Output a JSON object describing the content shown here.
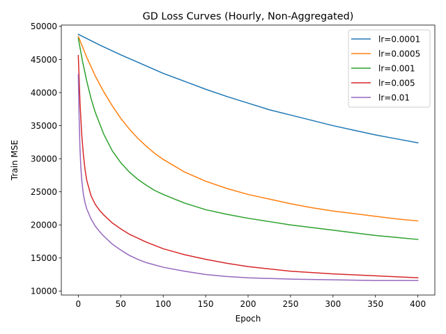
{
  "chart_data": {
    "type": "line",
    "title": "GD Loss Curves (Hourly, Non-Aggregated)",
    "xlabel": "Epoch",
    "ylabel": "Train MSE",
    "xlim": [
      -20,
      420
    ],
    "ylim": [
      9400,
      50200
    ],
    "xticks": [
      0,
      50,
      100,
      150,
      200,
      250,
      300,
      350,
      400
    ],
    "yticks": [
      10000,
      15000,
      20000,
      25000,
      30000,
      35000,
      40000,
      45000,
      50000
    ],
    "grid": false,
    "legend_position": "upper right",
    "series": [
      {
        "name": "lr=0.0001",
        "color": "#1f77b4",
        "x": [
          0,
          25,
          50,
          75,
          100,
          125,
          150,
          175,
          200,
          225,
          250,
          275,
          300,
          325,
          350,
          375,
          400
        ],
        "y": [
          48800,
          47200,
          45700,
          44300,
          42900,
          41700,
          40500,
          39400,
          38400,
          37400,
          36600,
          35800,
          35000,
          34300,
          33600,
          33000,
          32400
        ]
      },
      {
        "name": "lr=0.0005",
        "color": "#ff7f0e",
        "x": [
          0,
          10,
          20,
          30,
          40,
          50,
          60,
          70,
          80,
          90,
          100,
          125,
          150,
          175,
          200,
          225,
          250,
          275,
          300,
          325,
          350,
          375,
          400
        ],
        "y": [
          48500,
          45300,
          42500,
          40100,
          38000,
          36100,
          34500,
          33100,
          31900,
          30800,
          29900,
          28000,
          26600,
          25500,
          24600,
          23900,
          23200,
          22600,
          22100,
          21700,
          21300,
          20900,
          20600
        ]
      },
      {
        "name": "lr=0.001",
        "color": "#2ca02c",
        "x": [
          0,
          5,
          10,
          15,
          20,
          30,
          40,
          50,
          60,
          70,
          80,
          90,
          100,
          125,
          150,
          175,
          200,
          225,
          250,
          275,
          300,
          325,
          350,
          375,
          400
        ],
        "y": [
          48200,
          44700,
          41700,
          39100,
          37000,
          33700,
          31200,
          29400,
          28000,
          26900,
          26000,
          25200,
          24600,
          23300,
          22300,
          21600,
          21000,
          20500,
          20000,
          19600,
          19200,
          18800,
          18400,
          18100,
          17800
        ]
      },
      {
        "name": "lr=0.005",
        "color": "#d62728",
        "x": [
          0,
          2,
          4,
          6,
          8,
          10,
          15,
          20,
          25,
          30,
          40,
          50,
          60,
          70,
          80,
          100,
          125,
          150,
          175,
          200,
          250,
          300,
          350,
          400
        ],
        "y": [
          45600,
          38500,
          33700,
          30600,
          28300,
          26700,
          24400,
          23100,
          22200,
          21500,
          20300,
          19400,
          18600,
          18000,
          17400,
          16400,
          15500,
          14800,
          14200,
          13700,
          13000,
          12600,
          12300,
          12000
        ]
      },
      {
        "name": "lr=0.01",
        "color": "#9467bd",
        "x": [
          0,
          1,
          2,
          3,
          4,
          6,
          8,
          10,
          15,
          20,
          25,
          30,
          40,
          50,
          60,
          70,
          80,
          100,
          125,
          150,
          175,
          200,
          250,
          300,
          350,
          400
        ],
        "y": [
          42700,
          36000,
          31500,
          28700,
          26800,
          24600,
          23300,
          22400,
          20900,
          19800,
          19000,
          18300,
          17100,
          16200,
          15400,
          14800,
          14300,
          13600,
          13000,
          12500,
          12200,
          12000,
          11800,
          11700,
          11600,
          11600
        ]
      }
    ]
  }
}
